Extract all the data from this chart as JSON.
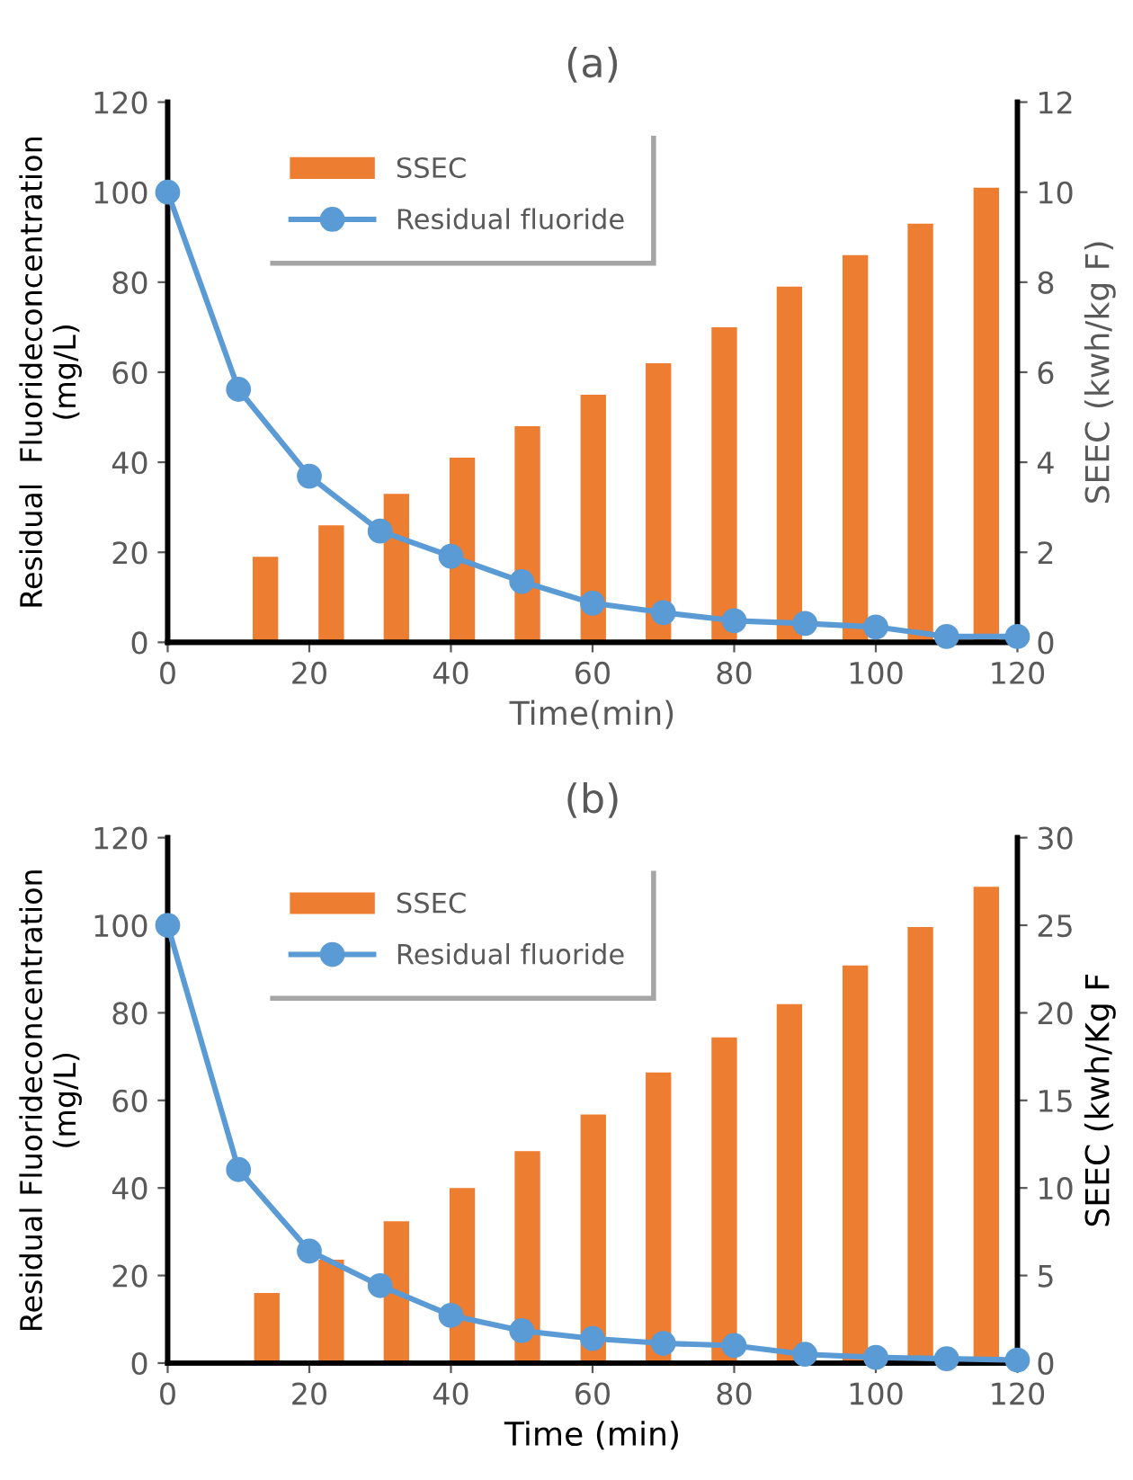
{
  "chart_data": [
    {
      "type": "line",
      "title": "(a)",
      "xlabel": "Time(min)",
      "ylabel": "Residual  Fluorideconcentration\n(mg/L)",
      "y2label": "SEEC (kwh/kg F)",
      "xlim": [
        0,
        120
      ],
      "xticks": [
        0,
        20,
        40,
        60,
        80,
        100,
        120
      ],
      "ylim": [
        0,
        120
      ],
      "yticks": [
        0,
        20,
        40,
        60,
        80,
        100,
        120
      ],
      "y2lim": [
        0,
        12
      ],
      "y2ticks": [
        0,
        2,
        4,
        6,
        8,
        10,
        12
      ],
      "legend": "top left",
      "grid": false,
      "marker": "circle",
      "line_style": "solid",
      "series": [
        {
          "name": "SSEC",
          "type": "bar",
          "axis": "y2",
          "color": "#ed7d31",
          "x": [
            13.8,
            23.1,
            32.3,
            41.6,
            50.8,
            60.1,
            69.3,
            78.6,
            87.8,
            97.1,
            106.3,
            115.6
          ],
          "values": [
            1.9,
            2.6,
            3.3,
            4.1,
            4.8,
            5.5,
            6.2,
            7.0,
            7.9,
            8.6,
            9.3,
            10.1
          ]
        },
        {
          "name": "Residual fluoride",
          "color": "#5b9bd5",
          "x": [
            0,
            10,
            20,
            30,
            40,
            50,
            60,
            70,
            80,
            90,
            100,
            110,
            120
          ],
          "values": [
            100,
            56.2,
            36.9,
            24.7,
            19.1,
            13.5,
            8.7,
            6.6,
            4.8,
            4.2,
            3.4,
            1.3,
            1.3
          ]
        }
      ]
    },
    {
      "type": "line",
      "title": "(b)",
      "xlabel": "Time (min)",
      "ylabel": "Residual Fluorideconcentration\n(mg/L)",
      "y2label": "SEEC (kwh/Kg F",
      "xlim": [
        0,
        120
      ],
      "xticks": [
        0,
        20,
        40,
        60,
        80,
        100,
        120
      ],
      "ylim": [
        0,
        120
      ],
      "yticks": [
        0,
        20,
        40,
        60,
        80,
        100,
        120
      ],
      "y2lim": [
        0,
        30
      ],
      "y2ticks": [
        0,
        5,
        10,
        15,
        20,
        25,
        30
      ],
      "legend": "top left",
      "grid": false,
      "marker": "circle",
      "line_style": "solid",
      "series": [
        {
          "name": "SSEC",
          "type": "bar",
          "axis": "y2",
          "color": "#ed7d31",
          "x": [
            14.0,
            23.1,
            32.3,
            41.6,
            50.8,
            60.1,
            69.3,
            78.6,
            87.8,
            97.1,
            106.3,
            115.6
          ],
          "values": [
            4.0,
            5.9,
            8.1,
            10.0,
            12.1,
            14.2,
            16.6,
            18.6,
            20.5,
            22.7,
            24.9,
            27.2
          ]
        },
        {
          "name": "Residual fluoride",
          "color": "#5b9bd5",
          "x": [
            0,
            10,
            20,
            30,
            40,
            50,
            60,
            70,
            80,
            90,
            100,
            110,
            120
          ],
          "values": [
            100,
            44.2,
            25.6,
            17.7,
            10.9,
            7.4,
            5.6,
            4.5,
            4.0,
            2.0,
            1.3,
            1.0,
            0.7
          ]
        }
      ]
    }
  ]
}
